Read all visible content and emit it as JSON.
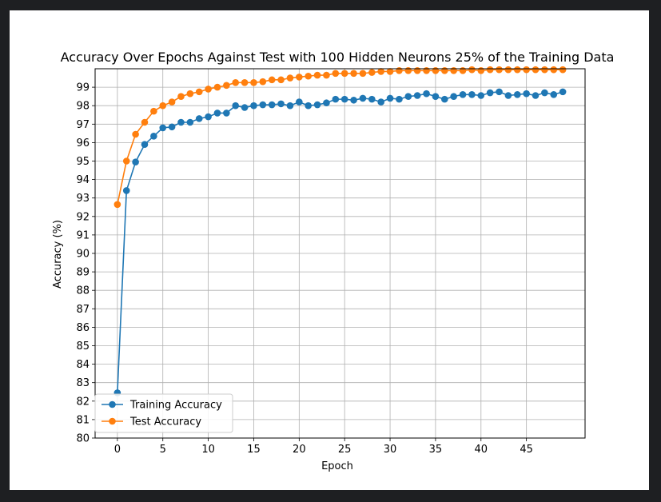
{
  "chart_data": {
    "type": "line",
    "title": "Accuracy Over Epochs Against Test with 100 Hidden Neurons 25% of the Training Data",
    "xlabel": "Epoch",
    "ylabel": "Accuracy (%)",
    "xlim": [
      -2.45,
      51.45
    ],
    "ylim": [
      80,
      100
    ],
    "xticks": [
      0,
      5,
      10,
      15,
      20,
      25,
      30,
      35,
      40,
      45
    ],
    "yticks": [
      80,
      81,
      82,
      83,
      84,
      85,
      86,
      87,
      88,
      89,
      90,
      91,
      92,
      93,
      94,
      95,
      96,
      97,
      98,
      99
    ],
    "grid": true,
    "legend_position": "lower-left",
    "x": [
      0,
      1,
      2,
      3,
      4,
      5,
      6,
      7,
      8,
      9,
      10,
      11,
      12,
      13,
      14,
      15,
      16,
      17,
      18,
      19,
      20,
      21,
      22,
      23,
      24,
      25,
      26,
      27,
      28,
      29,
      30,
      31,
      32,
      33,
      34,
      35,
      36,
      37,
      38,
      39,
      40,
      41,
      42,
      43,
      44,
      45,
      46,
      47,
      48,
      49
    ],
    "series": [
      {
        "name": "Training Accuracy",
        "color": "#1f77b4",
        "values": [
          82.45,
          93.4,
          94.95,
          95.9,
          96.35,
          96.8,
          96.85,
          97.1,
          97.1,
          97.3,
          97.4,
          97.6,
          97.6,
          98.0,
          97.9,
          98.0,
          98.05,
          98.05,
          98.1,
          98.0,
          98.2,
          98.0,
          98.05,
          98.15,
          98.35,
          98.35,
          98.3,
          98.4,
          98.35,
          98.2,
          98.4,
          98.35,
          98.5,
          98.55,
          98.65,
          98.5,
          98.35,
          98.5,
          98.6,
          98.6,
          98.55,
          98.7,
          98.75,
          98.55,
          98.6,
          98.65,
          98.55,
          98.7,
          98.6,
          98.75
        ]
      },
      {
        "name": "Test Accuracy",
        "color": "#ff7f0e",
        "values": [
          92.65,
          95.0,
          96.45,
          97.1,
          97.7,
          98.0,
          98.2,
          98.5,
          98.65,
          98.75,
          98.9,
          99.0,
          99.1,
          99.25,
          99.25,
          99.25,
          99.3,
          99.4,
          99.4,
          99.5,
          99.55,
          99.6,
          99.65,
          99.65,
          99.75,
          99.75,
          99.75,
          99.75,
          99.8,
          99.85,
          99.85,
          99.9,
          99.9,
          99.9,
          99.9,
          99.9,
          99.9,
          99.9,
          99.9,
          99.95,
          99.9,
          99.95,
          99.95,
          99.95,
          99.95,
          99.95,
          99.95,
          99.95,
          99.95,
          99.95
        ]
      }
    ]
  }
}
